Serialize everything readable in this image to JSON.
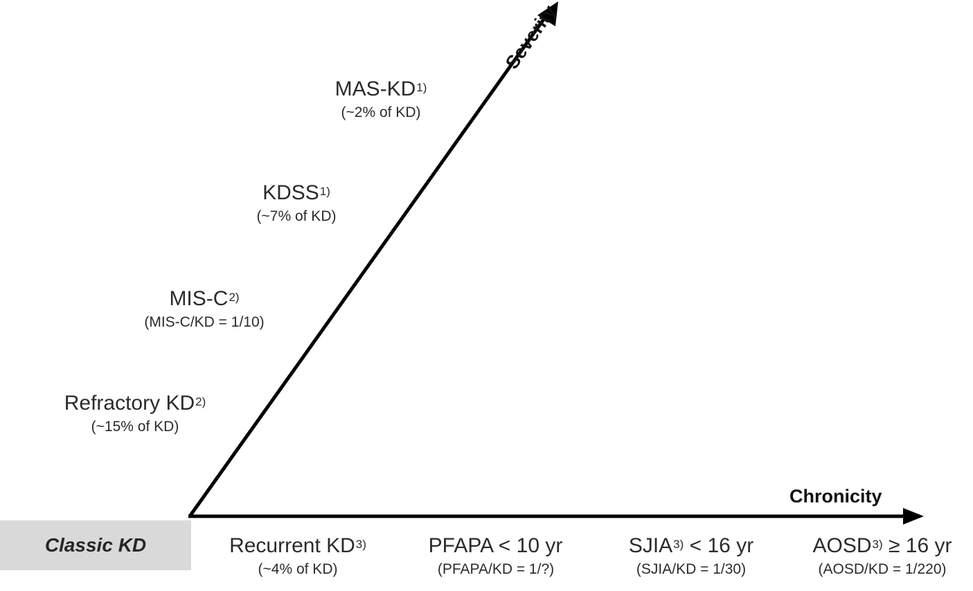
{
  "axes": {
    "severity_label": "Severity",
    "chronicity_label": "Chronicity",
    "color": "#000000"
  },
  "origin": {
    "label": "Classic KD",
    "fill": "#d9d9d9"
  },
  "severity_items": [
    {
      "name": "MAS-KD",
      "ref": "1)",
      "detail": "(~2% of KD)"
    },
    {
      "name": "KDSS",
      "ref": "1)",
      "detail": "(~7% of KD)"
    },
    {
      "name": "MIS-C",
      "ref": "2)",
      "detail": "(MIS-C/KD = 1/10)"
    },
    {
      "name": "Refractory KD",
      "ref": "2)",
      "detail": "(~15% of KD)"
    }
  ],
  "chronicity_items": [
    {
      "name": "Recurrent KD",
      "ref": "3)",
      "suffix": "",
      "detail": "(~4% of KD)"
    },
    {
      "name": "PFAPA < 10 yr",
      "ref": "",
      "suffix": "",
      "detail": "(PFAPA/KD = 1/?)"
    },
    {
      "name": "SJIA",
      "ref": "3)",
      "suffix": " < 16 yr",
      "detail": "(SJIA/KD = 1/30)"
    },
    {
      "name": "AOSD",
      "ref": "3)",
      "suffix": " ≥ 16 yr",
      "detail": "(AOSD/KD = 1/220)"
    }
  ]
}
